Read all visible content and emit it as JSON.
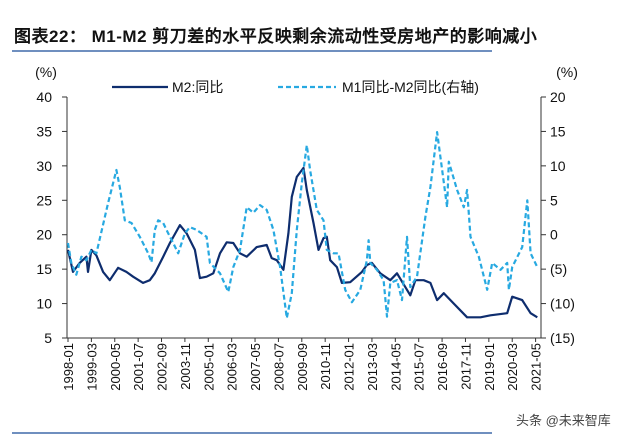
{
  "title": "图表22：  M1-M2 剪刀差的水平反映剩余流动性受房地产的影响减小",
  "watermark": "头条 @未来智库",
  "colors": {
    "m2": "#0e2d6e",
    "diff": "#27a9e1",
    "rule": "#6f8fbf"
  },
  "chart_data": {
    "type": "line",
    "title": "M1-M2 剪刀差的水平反映剩余流动性受房地产的影响减小",
    "left_axis": {
      "unit": "(%)",
      "ylim": [
        5,
        40
      ],
      "ticks": [
        "5",
        "10",
        "15",
        "20",
        "25",
        "30",
        "35",
        "40"
      ]
    },
    "right_axis": {
      "unit": "(%)",
      "ylim": [
        -15,
        20
      ],
      "ticks": [
        "(15)",
        "(10)",
        "(5)",
        "0",
        "5",
        "10",
        "15",
        "20"
      ]
    },
    "x_ticks": [
      "1998-01",
      "1999-03",
      "2000-05",
      "2001-07",
      "2002-09",
      "2003-11",
      "2005-01",
      "2006-03",
      "2007-05",
      "2008-07",
      "2009-09",
      "2010-11",
      "2012-01",
      "2013-03",
      "2014-05",
      "2015-07",
      "2016-09",
      "2017-11",
      "2019-01",
      "2020-03",
      "2021-05"
    ],
    "grid": false,
    "legend_position": "top",
    "series": [
      {
        "name": "M2:同比",
        "axis": "left",
        "style": "solid",
        "points": [
          [
            "1998-01",
            17.8
          ],
          [
            "1998-04",
            14.6
          ],
          [
            "1998-08",
            15.9
          ],
          [
            "1998-12",
            16.8
          ],
          [
            "1999-01",
            14.6
          ],
          [
            "1999-03",
            17.8
          ],
          [
            "1999-06",
            17.0
          ],
          [
            "1999-10",
            14.6
          ],
          [
            "2000-02",
            13.4
          ],
          [
            "2000-07",
            15.2
          ],
          [
            "2000-12",
            14.6
          ],
          [
            "2001-04",
            13.9
          ],
          [
            "2001-10",
            13.0
          ],
          [
            "2002-02",
            13.4
          ],
          [
            "2002-05",
            14.4
          ],
          [
            "2002-10",
            16.8
          ],
          [
            "2003-02",
            18.8
          ],
          [
            "2003-08",
            21.4
          ],
          [
            "2003-12",
            20.2
          ],
          [
            "2004-05",
            17.8
          ],
          [
            "2004-08",
            13.7
          ],
          [
            "2004-12",
            13.9
          ],
          [
            "2005-04",
            14.4
          ],
          [
            "2005-08",
            17.3
          ],
          [
            "2005-12",
            18.9
          ],
          [
            "2006-04",
            18.8
          ],
          [
            "2006-08",
            17.3
          ],
          [
            "2006-12",
            16.8
          ],
          [
            "2007-06",
            18.2
          ],
          [
            "2007-12",
            18.5
          ],
          [
            "2008-03",
            16.6
          ],
          [
            "2008-06",
            16.3
          ],
          [
            "2008-10",
            14.9
          ],
          [
            "2009-01",
            20.2
          ],
          [
            "2009-03",
            25.5
          ],
          [
            "2009-06",
            28.4
          ],
          [
            "2009-10",
            29.7
          ],
          [
            "2009-12",
            26.5
          ],
          [
            "2010-04",
            21.7
          ],
          [
            "2010-07",
            17.8
          ],
          [
            "2010-10",
            19.5
          ],
          [
            "2010-12",
            19.7
          ],
          [
            "2011-02",
            16.3
          ],
          [
            "2011-06",
            15.3
          ],
          [
            "2011-09",
            13.0
          ],
          [
            "2012-02",
            13.1
          ],
          [
            "2012-09",
            14.6
          ],
          [
            "2012-12",
            15.6
          ],
          [
            "2013-03",
            15.9
          ],
          [
            "2013-08",
            14.4
          ],
          [
            "2014-02",
            13.4
          ],
          [
            "2014-06",
            14.4
          ],
          [
            "2015-02",
            11.2
          ],
          [
            "2015-05",
            13.4
          ],
          [
            "2015-10",
            13.4
          ],
          [
            "2016-02",
            13.0
          ],
          [
            "2016-06",
            10.5
          ],
          [
            "2016-10",
            11.5
          ],
          [
            "2017-04",
            10.0
          ],
          [
            "2017-12",
            8.0
          ],
          [
            "2018-08",
            8.0
          ],
          [
            "2019-02",
            8.3
          ],
          [
            "2019-12",
            8.6
          ],
          [
            "2020-03",
            11.0
          ],
          [
            "2020-09",
            10.5
          ],
          [
            "2021-02",
            8.6
          ],
          [
            "2021-06",
            8.0
          ]
        ]
      },
      {
        "name": "M1同比-M2同比(右轴)",
        "axis": "right",
        "style": "dashed",
        "points": [
          [
            "1998-01",
            -1.2
          ],
          [
            "1998-03",
            -4.1
          ],
          [
            "1998-06",
            -5.8
          ],
          [
            "1998-09",
            -3.2
          ],
          [
            "1998-12",
            -3.7
          ],
          [
            "1999-03",
            -2.2
          ],
          [
            "1999-06",
            -2.7
          ],
          [
            "2000-01",
            4.6
          ],
          [
            "2000-06",
            9.4
          ],
          [
            "2000-08",
            6.9
          ],
          [
            "2000-11",
            2.1
          ],
          [
            "2001-03",
            1.7
          ],
          [
            "2001-08",
            -0.3
          ],
          [
            "2002-01",
            -2.7
          ],
          [
            "2002-03",
            -4.0
          ],
          [
            "2002-05",
            0.7
          ],
          [
            "2002-07",
            2.1
          ],
          [
            "2002-10",
            1.7
          ],
          [
            "2003-01",
            0.2
          ],
          [
            "2003-04",
            -1.2
          ],
          [
            "2003-07",
            -2.7
          ],
          [
            "2003-11",
            0.2
          ],
          [
            "2004-02",
            1.1
          ],
          [
            "2004-06",
            0.7
          ],
          [
            "2004-12",
            -0.3
          ],
          [
            "2005-02",
            -4.1
          ],
          [
            "2005-08",
            -5.6
          ],
          [
            "2006-01",
            -8.3
          ],
          [
            "2006-04",
            -4.7
          ],
          [
            "2006-08",
            -2.2
          ],
          [
            "2006-12",
            4.0
          ],
          [
            "2007-04",
            3.2
          ],
          [
            "2007-08",
            4.3
          ],
          [
            "2007-12",
            3.6
          ],
          [
            "2008-04",
            0.7
          ],
          [
            "2008-08",
            -4.7
          ],
          [
            "2008-12",
            -12.1
          ],
          [
            "2009-03",
            -8.5
          ],
          [
            "2009-06",
            0.7
          ],
          [
            "2009-09",
            7.5
          ],
          [
            "2009-12",
            13.0
          ],
          [
            "2010-02",
            9.4
          ],
          [
            "2010-06",
            3.6
          ],
          [
            "2010-10",
            2.1
          ],
          [
            "2010-12",
            -2.2
          ],
          [
            "2011-04",
            -2.7
          ],
          [
            "2011-07",
            -2.7
          ],
          [
            "2011-11",
            -8.0
          ],
          [
            "2012-03",
            -9.8
          ],
          [
            "2012-08",
            -8.0
          ],
          [
            "2012-12",
            -3.7
          ],
          [
            "2013-01",
            -0.8
          ],
          [
            "2013-02",
            -4.1
          ],
          [
            "2013-06",
            -5.1
          ],
          [
            "2013-10",
            -6.6
          ],
          [
            "2013-12",
            -11.9
          ],
          [
            "2014-02",
            -7.0
          ],
          [
            "2014-06",
            -6.6
          ],
          [
            "2014-09",
            -9.5
          ],
          [
            "2014-12",
            -0.3
          ],
          [
            "2015-02",
            -7.6
          ],
          [
            "2015-06",
            -6.1
          ],
          [
            "2015-11",
            2.6
          ],
          [
            "2016-02",
            6.9
          ],
          [
            "2016-06",
            14.9
          ],
          [
            "2016-12",
            4.0
          ],
          [
            "2017-01",
            10.6
          ],
          [
            "2017-06",
            6.5
          ],
          [
            "2017-10",
            4.0
          ],
          [
            "2017-12",
            6.5
          ],
          [
            "2018-02",
            -0.3
          ],
          [
            "2018-07",
            -3.2
          ],
          [
            "2018-12",
            -8.0
          ],
          [
            "2019-03",
            -4.1
          ],
          [
            "2019-08",
            -5.1
          ],
          [
            "2019-12",
            -4.1
          ],
          [
            "2020-01",
            -8.0
          ],
          [
            "2020-03",
            -4.7
          ],
          [
            "2020-09",
            -1.8
          ],
          [
            "2020-12",
            5.0
          ],
          [
            "2021-02",
            -2.7
          ],
          [
            "2021-06",
            -4.7
          ]
        ]
      }
    ]
  }
}
